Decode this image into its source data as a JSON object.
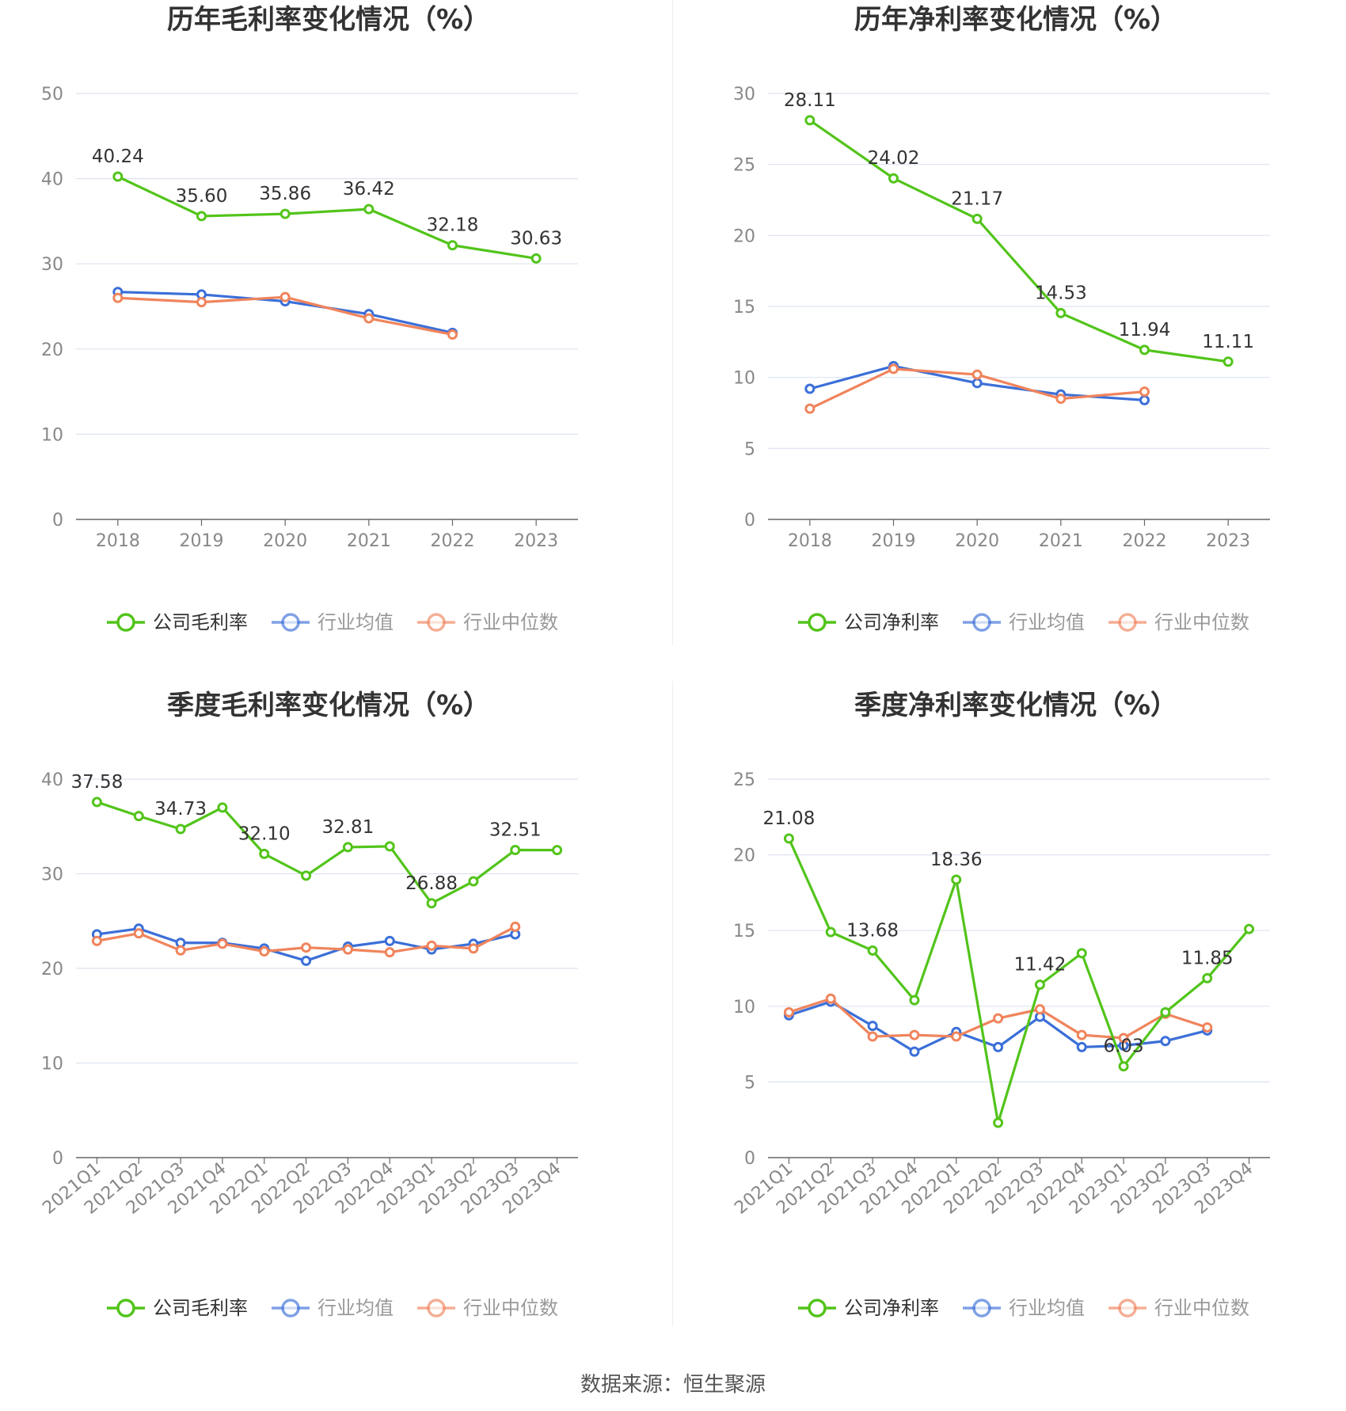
{
  "source": "数据来源：恒生聚源",
  "colors": {
    "company": "#52c41a",
    "avg": "#3b6fd8",
    "median": "#f0845c",
    "grid": "#dde3ef",
    "axis": "#666666",
    "tick": "#888888",
    "label": "#333333"
  },
  "chart_data": [
    {
      "type": "line",
      "title": "历年毛利率变化情况（%）",
      "categories": [
        "2018",
        "2019",
        "2020",
        "2021",
        "2022",
        "2023"
      ],
      "ylim": [
        0,
        50
      ],
      "yticks": [
        0,
        10,
        20,
        30,
        40,
        50
      ],
      "grid": true,
      "legend_position": "bottom",
      "series": [
        {
          "name": "公司毛利率",
          "color": "#52c41a",
          "values": [
            40.24,
            35.6,
            35.86,
            36.42,
            32.18,
            30.63
          ],
          "labels": [
            "40.24",
            "35.60",
            "35.86",
            "36.42",
            "32.18",
            "30.63"
          ]
        },
        {
          "name": "行业均值",
          "color": "#3b6fd8",
          "values": [
            26.7,
            26.4,
            25.6,
            24.1,
            21.9,
            null
          ]
        },
        {
          "name": "行业中位数",
          "color": "#f0845c",
          "values": [
            26.0,
            25.5,
            26.1,
            23.6,
            21.7,
            null
          ]
        }
      ]
    },
    {
      "type": "line",
      "title": "历年净利率变化情况（%）",
      "categories": [
        "2018",
        "2019",
        "2020",
        "2021",
        "2022",
        "2023"
      ],
      "ylim": [
        0,
        30
      ],
      "yticks": [
        0,
        5,
        10,
        15,
        20,
        25,
        30
      ],
      "grid": true,
      "legend_position": "bottom",
      "series": [
        {
          "name": "公司净利率",
          "color": "#52c41a",
          "values": [
            28.11,
            24.02,
            21.17,
            14.53,
            11.94,
            11.11
          ],
          "labels": [
            "28.11",
            "24.02",
            "21.17",
            "14.53",
            "11.94",
            "11.11"
          ]
        },
        {
          "name": "行业均值",
          "color": "#3b6fd8",
          "values": [
            9.2,
            10.8,
            9.6,
            8.8,
            8.4,
            null
          ]
        },
        {
          "name": "行业中位数",
          "color": "#f0845c",
          "values": [
            7.8,
            10.6,
            10.2,
            8.5,
            9.0,
            null
          ]
        }
      ]
    },
    {
      "type": "line",
      "title": "季度毛利率变化情况（%）",
      "categories": [
        "2021Q1",
        "2021Q2",
        "2021Q3",
        "2021Q4",
        "2022Q1",
        "2022Q2",
        "2022Q3",
        "2022Q4",
        "2023Q1",
        "2023Q2",
        "2023Q3",
        "2023Q4"
      ],
      "ylim": [
        0,
        40
      ],
      "yticks": [
        0,
        10,
        20,
        30,
        40
      ],
      "grid": true,
      "legend_position": "bottom",
      "series": [
        {
          "name": "公司毛利率",
          "color": "#52c41a",
          "values": [
            37.58,
            36.1,
            34.73,
            37.0,
            32.1,
            29.8,
            32.81,
            32.9,
            26.88,
            29.2,
            32.51,
            32.5
          ],
          "labels": [
            "37.58",
            "",
            "34.73",
            "",
            "32.10",
            "",
            "32.81",
            "",
            "26.88",
            "",
            "32.51",
            ""
          ]
        },
        {
          "name": "行业均值",
          "color": "#3b6fd8",
          "values": [
            23.6,
            24.2,
            22.7,
            22.7,
            22.1,
            20.8,
            22.3,
            22.9,
            22.0,
            22.6,
            23.6,
            null
          ]
        },
        {
          "name": "行业中位数",
          "color": "#f0845c",
          "values": [
            22.9,
            23.7,
            21.9,
            22.6,
            21.8,
            22.2,
            22.0,
            21.7,
            22.4,
            22.1,
            24.4,
            null
          ]
        }
      ]
    },
    {
      "type": "line",
      "title": "季度净利率变化情况（%）",
      "categories": [
        "2021Q1",
        "2021Q2",
        "2021Q3",
        "2021Q4",
        "2022Q1",
        "2022Q2",
        "2022Q3",
        "2022Q4",
        "2023Q1",
        "2023Q2",
        "2023Q3",
        "2023Q4"
      ],
      "ylim": [
        0,
        25
      ],
      "yticks": [
        0,
        5,
        10,
        15,
        20,
        25
      ],
      "grid": true,
      "legend_position": "bottom",
      "series": [
        {
          "name": "公司净利率",
          "color": "#52c41a",
          "values": [
            21.08,
            14.9,
            13.68,
            10.4,
            18.36,
            2.3,
            11.42,
            13.5,
            6.03,
            9.6,
            11.85,
            15.1
          ],
          "labels": [
            "21.08",
            "",
            "13.68",
            "",
            "18.36",
            "",
            "11.42",
            "",
            "6.03",
            "",
            "11.85",
            ""
          ]
        },
        {
          "name": "行业均值",
          "color": "#3b6fd8",
          "values": [
            9.4,
            10.3,
            8.7,
            7.0,
            8.3,
            7.3,
            9.3,
            7.3,
            7.4,
            7.7,
            8.4,
            null
          ]
        },
        {
          "name": "行业中位数",
          "color": "#f0845c",
          "values": [
            9.6,
            10.5,
            8.0,
            8.1,
            8.0,
            9.2,
            9.8,
            8.1,
            7.9,
            9.5,
            8.6,
            null
          ]
        }
      ]
    }
  ]
}
